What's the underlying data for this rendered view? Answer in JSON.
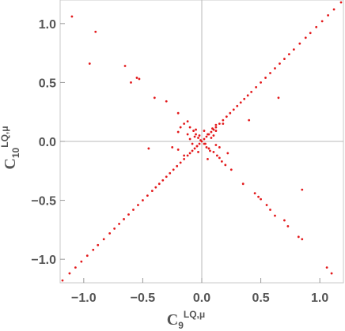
{
  "chart_data": {
    "type": "scatter",
    "title": "",
    "xlabel": {
      "main": "C",
      "sub": "9",
      "sup": "LQ,μ"
    },
    "ylabel": {
      "main": "C",
      "sub": "10",
      "sup": "LQ,μ"
    },
    "xlim": [
      -1.2,
      1.2
    ],
    "ylim": [
      -1.2,
      1.2
    ],
    "x_ticks": [
      -1.0,
      -0.5,
      0.0,
      0.5,
      1.0
    ],
    "x_tick_labels": [
      "−1.0",
      "−0.5",
      "0.0",
      "0.5",
      "1.0"
    ],
    "y_ticks": [
      -1.0,
      -0.5,
      0.0,
      0.5,
      1.0
    ],
    "y_tick_labels": [
      "−1.0",
      "−0.5",
      "0.0",
      "0.5",
      "1.0"
    ],
    "grid": false,
    "zero_lines": true,
    "point_color": "#e31a1c",
    "series": [
      {
        "values_description": "",
        "points": [
          [
            -1.18,
            -1.18
          ],
          [
            -1.12,
            -1.12
          ],
          [
            -1.07,
            -1.07
          ],
          [
            -1.02,
            -1.02
          ],
          [
            -0.97,
            -0.97
          ],
          [
            -0.92,
            -0.92
          ],
          [
            -0.88,
            -0.88
          ],
          [
            -0.83,
            -0.83
          ],
          [
            -0.78,
            -0.78
          ],
          [
            -0.74,
            -0.74
          ],
          [
            -0.7,
            -0.7
          ],
          [
            -0.66,
            -0.66
          ],
          [
            -0.62,
            -0.62
          ],
          [
            -0.58,
            -0.58
          ],
          [
            -0.54,
            -0.54
          ],
          [
            -0.5,
            -0.5
          ],
          [
            -0.46,
            -0.46
          ],
          [
            -0.42,
            -0.42
          ],
          [
            -0.39,
            -0.39
          ],
          [
            -0.36,
            -0.36
          ],
          [
            -0.33,
            -0.33
          ],
          [
            -0.3,
            -0.3
          ],
          [
            -0.27,
            -0.27
          ],
          [
            -0.24,
            -0.24
          ],
          [
            -0.21,
            -0.21
          ],
          [
            -0.18,
            -0.18
          ],
          [
            -0.15,
            -0.15
          ],
          [
            -0.12,
            -0.12
          ],
          [
            -0.1,
            -0.1
          ],
          [
            -0.08,
            -0.08
          ],
          [
            -0.06,
            -0.06
          ],
          [
            -0.04,
            -0.04
          ],
          [
            -0.02,
            -0.02
          ],
          [
            0.0,
            0.0
          ],
          [
            0.02,
            0.02
          ],
          [
            0.04,
            0.04
          ],
          [
            0.06,
            0.06
          ],
          [
            0.08,
            0.08
          ],
          [
            0.1,
            0.1
          ],
          [
            0.12,
            0.12
          ],
          [
            0.15,
            0.15
          ],
          [
            0.18,
            0.18
          ],
          [
            0.21,
            0.21
          ],
          [
            0.24,
            0.24
          ],
          [
            0.27,
            0.27
          ],
          [
            0.3,
            0.3
          ],
          [
            0.33,
            0.33
          ],
          [
            0.36,
            0.36
          ],
          [
            0.39,
            0.39
          ],
          [
            0.42,
            0.42
          ],
          [
            0.46,
            0.46
          ],
          [
            0.5,
            0.5
          ],
          [
            0.54,
            0.54
          ],
          [
            0.58,
            0.58
          ],
          [
            0.62,
            0.62
          ],
          [
            0.66,
            0.66
          ],
          [
            0.7,
            0.7
          ],
          [
            0.74,
            0.74
          ],
          [
            0.78,
            0.78
          ],
          [
            0.83,
            0.83
          ],
          [
            0.88,
            0.88
          ],
          [
            0.92,
            0.92
          ],
          [
            0.97,
            0.97
          ],
          [
            1.02,
            1.02
          ],
          [
            1.07,
            1.07
          ],
          [
            1.12,
            1.12
          ],
          [
            1.18,
            1.18
          ],
          [
            -1.1,
            1.06
          ],
          [
            -0.9,
            0.93
          ],
          [
            -0.95,
            0.66
          ],
          [
            -0.65,
            0.64
          ],
          [
            -0.6,
            0.5
          ],
          [
            -0.55,
            0.54
          ],
          [
            -0.53,
            0.53
          ],
          [
            -0.4,
            0.37
          ],
          [
            -0.3,
            0.34
          ],
          [
            -0.2,
            0.24
          ],
          [
            -0.12,
            0.17
          ],
          [
            -0.1,
            0.12
          ],
          [
            -0.07,
            0.09
          ],
          [
            -0.05,
            0.06
          ],
          [
            -0.03,
            0.03
          ],
          [
            -0.01,
            0.01
          ],
          [
            0.02,
            -0.02
          ],
          [
            0.04,
            -0.05
          ],
          [
            0.06,
            -0.06
          ],
          [
            0.1,
            -0.09
          ],
          [
            0.13,
            -0.12
          ],
          [
            0.17,
            -0.17
          ],
          [
            0.2,
            -0.2
          ],
          [
            0.25,
            -0.24
          ],
          [
            0.35,
            -0.36
          ],
          [
            0.45,
            -0.44
          ],
          [
            0.48,
            -0.47
          ],
          [
            0.5,
            -0.49
          ],
          [
            0.55,
            -0.54
          ],
          [
            0.58,
            -0.58
          ],
          [
            0.62,
            -0.63
          ],
          [
            0.7,
            -0.67
          ],
          [
            0.73,
            -0.72
          ],
          [
            0.82,
            -0.81
          ],
          [
            0.85,
            -0.83
          ],
          [
            0.85,
            -0.41
          ],
          [
            1.06,
            -1.07
          ],
          [
            1.1,
            -1.12
          ],
          [
            0.65,
            0.37
          ],
          [
            0.4,
            0.18
          ],
          [
            0.18,
            0.15
          ],
          [
            0.12,
            0.14
          ],
          [
            0.09,
            0.11
          ],
          [
            -0.15,
            0.15
          ],
          [
            -0.18,
            0.12
          ],
          [
            -0.2,
            0.08
          ],
          [
            -0.12,
            0.06
          ],
          [
            -0.25,
            -0.05
          ],
          [
            -0.2,
            -0.07
          ],
          [
            -0.45,
            -0.06
          ],
          [
            -0.15,
            -0.12
          ],
          [
            0.12,
            -0.03
          ],
          [
            0.15,
            -0.05
          ],
          [
            0.22,
            -0.1
          ],
          [
            0.15,
            -0.14
          ],
          [
            0.05,
            -0.15
          ],
          [
            0.08,
            0.03
          ],
          [
            0.1,
            0.05
          ],
          [
            -0.05,
            0.1
          ],
          [
            -0.08,
            -0.02
          ],
          [
            0.12,
            0.09
          ],
          [
            -0.03,
            -0.09
          ],
          [
            0.07,
            -0.08
          ],
          [
            -0.1,
            0.02
          ],
          [
            0.02,
            0.09
          ],
          [
            -0.06,
            0.04
          ],
          [
            0.05,
            0.06
          ],
          [
            -0.04,
            -0.04
          ],
          [
            0.03,
            -0.02
          ],
          [
            -0.02,
            0.05
          ]
        ]
      }
    ]
  }
}
